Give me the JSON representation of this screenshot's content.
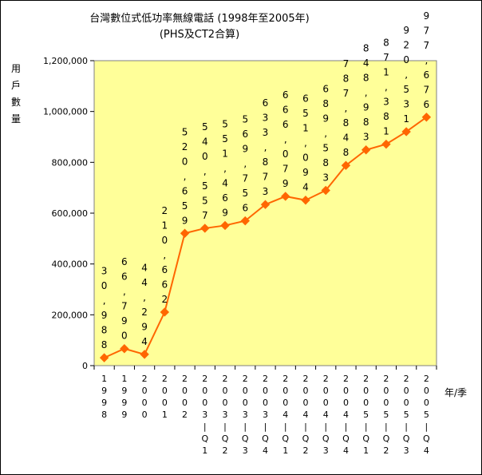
{
  "chart_data": {
    "type": "line",
    "title": "台灣數位式低功率無線電話 (1998年至2005年)",
    "subtitle": "(PHS及CT2合算)",
    "ylabel": "用戶數量",
    "xlabel": "年/季",
    "ylim": [
      0,
      1200000
    ],
    "yticks": [
      "0",
      "200,000",
      "400,000",
      "600,000",
      "800,000",
      "1,000,000",
      "1,200,000"
    ],
    "grid": false,
    "legend": "none",
    "colors": {
      "plot_bg": "#FFFF99",
      "line": "#FF6600",
      "marker": "#FF6600"
    },
    "categories": [
      "1998",
      "1999",
      "2000",
      "2001",
      "2002",
      "2003-Q1",
      "2003-Q2",
      "2003-Q3",
      "2003-Q4",
      "2004-Q1",
      "2004-Q2",
      "2004-Q3",
      "2004-Q4",
      "2005-Q1",
      "2005-Q2",
      "2005-Q3",
      "2005-Q4"
    ],
    "series": [
      {
        "values": [
          30988,
          66790,
          44294,
          210662,
          520659,
          540557,
          551469,
          569756,
          633873,
          666079,
          651094,
          689583,
          787848,
          848983,
          871381,
          920531,
          977676
        ],
        "labels": [
          "30,988",
          "66,790",
          "44,294",
          "210,662",
          "520,659",
          "540,557",
          "551,469",
          "569,756",
          "633,873",
          "666,079",
          "651,094",
          "689,583",
          "787,848",
          "848,983",
          "871,381",
          "920,531",
          "977,676"
        ]
      }
    ]
  }
}
